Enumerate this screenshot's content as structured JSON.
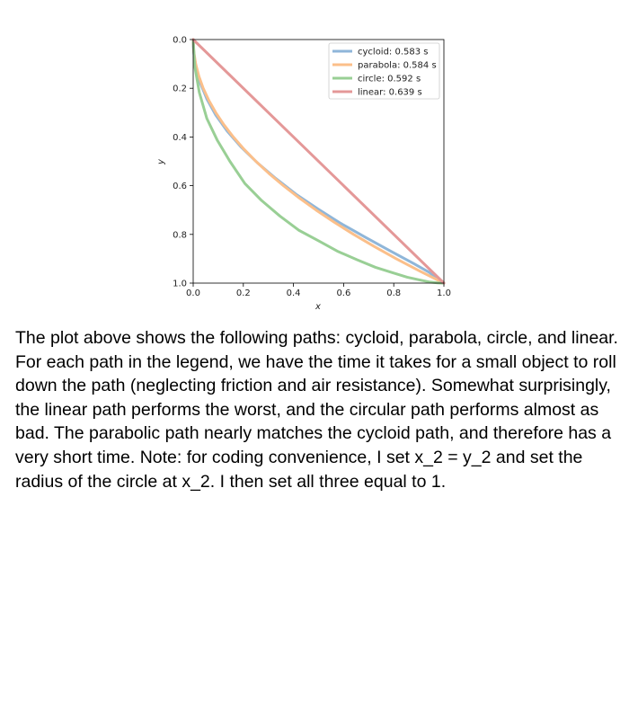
{
  "chart_data": {
    "type": "line",
    "xlabel": "x",
    "ylabel": "y",
    "xlim": [
      0,
      1
    ],
    "ylim": [
      1,
      0
    ],
    "y_inverted": true,
    "grid": false,
    "legend_position": "top-right",
    "xticks": [
      "0.0",
      "0.2",
      "0.4",
      "0.6",
      "0.8",
      "1.0"
    ],
    "yticks": [
      "0.0",
      "0.2",
      "0.4",
      "0.6",
      "0.8",
      "1.0"
    ],
    "series": [
      {
        "name": "cycloid: 0.583 s",
        "color": "#8fb6d9",
        "x": [
          0,
          0.0005,
          0.004,
          0.013,
          0.029,
          0.055,
          0.09,
          0.135,
          0.19,
          0.255,
          0.329,
          0.41,
          0.497,
          0.589,
          0.684,
          0.781,
          0.88,
          0.94,
          1.0
        ],
        "y": [
          0,
          0.03,
          0.07,
          0.12,
          0.18,
          0.245,
          0.31,
          0.375,
          0.44,
          0.505,
          0.57,
          0.635,
          0.695,
          0.755,
          0.81,
          0.865,
          0.92,
          0.955,
          1.0
        ]
      },
      {
        "name": "parabola: 0.584 s",
        "color": "#fbbf8a",
        "x": [
          0,
          0.0025,
          0.01,
          0.0225,
          0.04,
          0.0625,
          0.09,
          0.1225,
          0.16,
          0.2025,
          0.25,
          0.3025,
          0.36,
          0.4225,
          0.49,
          0.5625,
          0.64,
          0.7225,
          0.81,
          0.9025,
          1.0
        ],
        "y": [
          0,
          0.05,
          0.1,
          0.15,
          0.2,
          0.25,
          0.3,
          0.35,
          0.4,
          0.45,
          0.5,
          0.55,
          0.6,
          0.65,
          0.7,
          0.75,
          0.8,
          0.85,
          0.9,
          0.95,
          1.0
        ]
      },
      {
        "name": "circle: 0.592 s",
        "color": "#99cf95",
        "x": [
          0,
          0.0062,
          0.0245,
          0.0545,
          0.0955,
          0.1464,
          0.2061,
          0.273,
          0.3455,
          0.4218,
          0.5,
          0.5782,
          0.6545,
          0.727,
          0.7939,
          0.8536,
          0.9045,
          0.9455,
          0.9755,
          0.9938,
          1.0
        ],
        "y": [
          0,
          0.1094,
          0.2178,
          0.3244,
          0.4122,
          0.5,
          0.5911,
          0.6611,
          0.7244,
          0.7832,
          0.8264,
          0.8704,
          0.9047,
          0.9352,
          0.957,
          0.9758,
          0.9874,
          0.996,
          0.999,
          1.0,
          1.0
        ]
      },
      {
        "name": "linear: 0.639 s",
        "color": "#e49898",
        "x": [
          0,
          1
        ],
        "y": [
          0,
          1
        ]
      }
    ]
  },
  "caption": {
    "text": "The plot above shows the following paths: cycloid, parabola, circle, and linear. For each path in the legend, we have the time it takes for a small object to roll down the path (neglecting friction and air resistance). Somewhat surprisingly, the linear path performs the worst, and the circular path performs almost as bad. The parabolic path nearly matches the cycloid path, and therefore has a very short time. Note: for coding convenience, I set x_2 = y_2 and set the radius of the circle at x_2. I then set all three equal to 1."
  }
}
